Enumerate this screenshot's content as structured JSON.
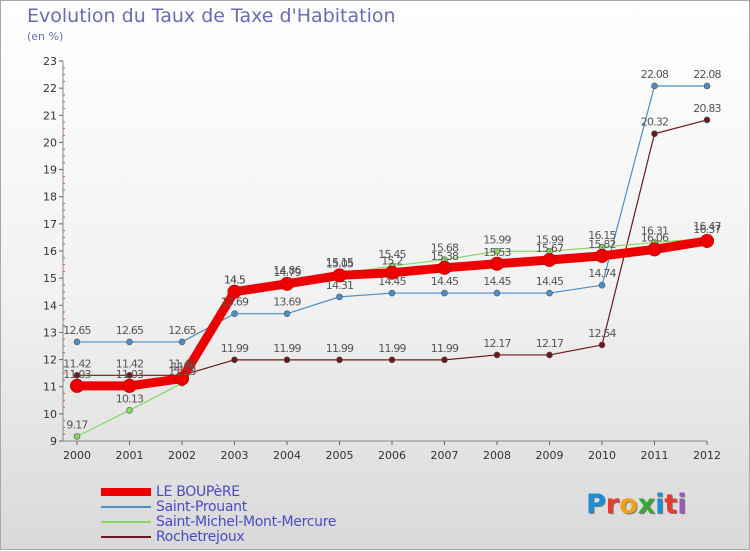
{
  "header": {
    "title": "Evolution du Taux de Taxe d'Habitation",
    "subtitle": "(en %)"
  },
  "brand": {
    "text": "Proxiti",
    "letter_colors": [
      "#1a8fd6",
      "#e63b2e",
      "#f2a31b",
      "#39a935",
      "#1a8fd6",
      "#e63b2e",
      "#9b59b6"
    ]
  },
  "chart_data": {
    "type": "line",
    "x": [
      "2000",
      "2001",
      "2002",
      "2003",
      "2004",
      "2005",
      "2006",
      "2007",
      "2008",
      "2009",
      "2010",
      "2011",
      "2012"
    ],
    "ylim": [
      9,
      23
    ],
    "yticks": [
      "9",
      "10",
      "11",
      "12",
      "13",
      "14",
      "15",
      "16",
      "17",
      "18",
      "19",
      "20",
      "21",
      "22",
      "23"
    ],
    "grid": false,
    "legend_position": "bottom-left",
    "series": [
      {
        "name": "LE BOUPèRE",
        "color": "#ee0000",
        "style": "thick",
        "values": [
          11.03,
          11.03,
          11.3,
          14.5,
          14.79,
          15.1,
          15.2,
          15.38,
          15.53,
          15.67,
          15.82,
          16.06,
          16.37
        ],
        "labels": [
          "11.03",
          "11.03",
          "11.3",
          "14.5",
          "14.79",
          "15.05",
          "15.2",
          "15.38",
          "15.53",
          "15.67",
          "15.82",
          "16.06",
          "16.37"
        ]
      },
      {
        "name": "Saint-Prouant",
        "color": "#4a8fc7",
        "style": "thin",
        "values": [
          12.65,
          12.65,
          12.65,
          13.69,
          13.69,
          14.31,
          14.45,
          14.45,
          14.45,
          14.45,
          14.74,
          22.08,
          22.08
        ],
        "labels": [
          "12.65",
          "12.65",
          "12.65",
          "13.69",
          "13.69",
          "14.31",
          "14.45",
          "14.45",
          "14.45",
          "14.45",
          "14.74",
          "22.08",
          "22.08"
        ]
      },
      {
        "name": "Saint-Michel-Mont-Mercure",
        "color": "#88d860",
        "style": "thin",
        "values": [
          9.17,
          10.13,
          11.13,
          14.5,
          14.86,
          15.15,
          15.45,
          15.68,
          15.99,
          15.99,
          16.15,
          16.31,
          16.47
        ],
        "labels": [
          "9.17",
          "10.13",
          "11.13",
          "14.5",
          "14.86",
          "15.15",
          "15.45",
          "15.68",
          "15.99",
          "15.99",
          "16.15",
          "16.31",
          "16.47"
        ]
      },
      {
        "name": "Rochetrejoux",
        "color": "#6a1a1a",
        "style": "thin",
        "values": [
          11.42,
          11.42,
          11.42,
          11.99,
          11.99,
          11.99,
          11.99,
          11.99,
          12.17,
          12.17,
          12.54,
          20.32,
          20.83
        ],
        "labels": [
          "11.42",
          "11.42",
          "11.42",
          "11.99",
          "11.99",
          "11.99",
          "11.99",
          "11.99",
          "12.17",
          "12.17",
          "12.54",
          "20.32",
          "20.83"
        ]
      }
    ]
  }
}
